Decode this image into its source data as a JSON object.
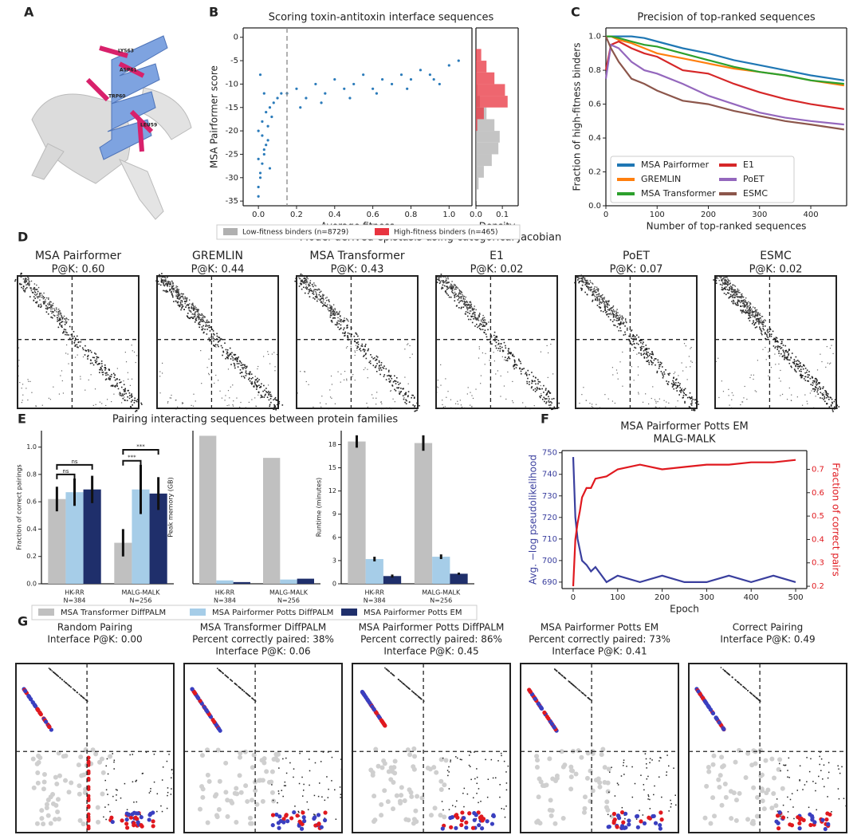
{
  "panel_labels": [
    "A",
    "B",
    "C",
    "D",
    "E",
    "F",
    "G"
  ],
  "panel_a": {
    "residue_labels": [
      "LYS63",
      "ASP61",
      "TRP60",
      "LEU59"
    ]
  },
  "panel_d": {
    "title": "Model-derived epistasis using categorical Jacobian",
    "maps": [
      {
        "model": "MSA Pairformer",
        "score": "P@K: 0.60"
      },
      {
        "model": "GREMLIN",
        "score": "P@K: 0.44"
      },
      {
        "model": "MSA Transformer",
        "score": "P@K: 0.43"
      },
      {
        "model": "E1",
        "score": "P@K: 0.02"
      },
      {
        "model": "PoET",
        "score": "P@K: 0.07"
      },
      {
        "model": "ESMC",
        "score": "P@K: 0.02"
      }
    ]
  },
  "panel_e": {
    "title": "Pairing interacting sequences between protein families"
  },
  "panel_g": {
    "maps": [
      {
        "lines": [
          "Random Pairing",
          "Interface P@K: 0.00"
        ]
      },
      {
        "lines": [
          "MSA Transformer DiffPALM",
          "Percent correctly paired: 38%",
          "Interface P@K: 0.06"
        ]
      },
      {
        "lines": [
          "MSA Pairformer Potts DiffPALM",
          "Percent correctly paired: 86%",
          "Interface P@K: 0.45"
        ]
      },
      {
        "lines": [
          "MSA Pairformer Potts EM",
          "Percent correctly paired: 73%",
          "Interface P@K: 0.41"
        ]
      },
      {
        "lines": [
          "Correct Pairing",
          "Interface P@K: 0.49"
        ]
      }
    ]
  },
  "chart_data": [
    {
      "type": "scatter",
      "title": "Scoring toxin-antitoxin interface sequences",
      "x_label": "Average fitness",
      "y_label": "MSA Pairformer score",
      "color": "#2b7bba",
      "threshold": 0.15,
      "x": [
        0.0,
        0.01,
        0.02,
        0.03,
        0.05,
        0.0,
        0.02,
        0.04,
        0.06,
        0.08,
        0.01,
        0.03,
        0.0,
        0.05,
        0.07,
        0.1,
        0.12,
        0.02,
        0.04,
        0.0,
        0.15,
        0.2,
        0.25,
        0.3,
        0.35,
        0.4,
        0.45,
        0.5,
        0.55,
        0.6,
        0.65,
        0.7,
        0.75,
        0.8,
        0.85,
        0.9,
        0.95,
        1.0,
        1.05,
        0.22,
        0.33,
        0.48,
        0.62,
        0.78,
        0.92,
        0.03,
        0.01,
        0.06
      ],
      "values": [
        -34,
        -30,
        -27,
        -25,
        -22,
        -20,
        -18,
        -16,
        -15,
        -14,
        -29,
        -24,
        -32,
        -19,
        -17,
        -13,
        -12,
        -21,
        -23,
        -26,
        -12,
        -11,
        -13,
        -10,
        -12,
        -9,
        -11,
        -10,
        -8,
        -11,
        -9,
        -10,
        -8,
        -9,
        -7,
        -8,
        -10,
        -6,
        -5,
        -15,
        -14,
        -13,
        -12,
        -11,
        -9,
        -12,
        -8,
        -28
      ],
      "xlim": [
        -0.08,
        1.12
      ],
      "xticks": [
        {
          "value": 0,
          "label": "0.0"
        },
        {
          "value": 0.2,
          "label": "0.2"
        },
        {
          "value": 0.4,
          "label": "0.4"
        },
        {
          "value": 0.6,
          "label": "0.6"
        },
        {
          "value": 0.8,
          "label": "0.8"
        },
        {
          "value": 1,
          "label": "1.0"
        }
      ],
      "ylim": [
        -36,
        2
      ],
      "yticks": [
        0,
        -5,
        -10,
        -15,
        -20,
        -25,
        -30,
        -35
      ]
    },
    {
      "type": "histogram",
      "orientation": "horizontal",
      "x_label": "Density",
      "legend": "below",
      "bins": [
        -35,
        -32.5,
        -30,
        -27.5,
        -25,
        -22.5,
        -20,
        -17.5,
        -15,
        -12.5,
        -10,
        -7.5,
        -5,
        -2.5
      ],
      "series": [
        {
          "name": "Low-fitness binders (n=8729)",
          "color": "#b0b0b0",
          "values": [
            0.003,
            0.01,
            0.03,
            0.06,
            0.085,
            0.09,
            0.07,
            0.04,
            0.015,
            0.005,
            0.002,
            0.001,
            0
          ]
        },
        {
          "name": "High-fitness binders (n=465)",
          "color": "#e8333f",
          "values": [
            0,
            0,
            0,
            0,
            0,
            0,
            0.005,
            0.03,
            0.12,
            0.11,
            0.07,
            0.04,
            0.02
          ]
        }
      ],
      "xlim": [
        0,
        0.16
      ],
      "xticks": [
        {
          "value": 0,
          "label": "0.0"
        },
        {
          "value": 0.1,
          "label": "0.1"
        }
      ],
      "ylim": [
        -36,
        2
      ]
    },
    {
      "type": "line",
      "title": "Precision of top-ranked sequences",
      "x_label": "Number of top-ranked sequences",
      "y_label": "Fraction of high-fitness binders",
      "legend": "lower left",
      "x": [
        0,
        10,
        25,
        50,
        75,
        100,
        150,
        200,
        250,
        300,
        350,
        400,
        465
      ],
      "series": [
        {
          "name": "MSA Pairformer",
          "color": "#1f77b4",
          "values": [
            1.0,
            1.0,
            1.0,
            1.0,
            0.99,
            0.97,
            0.93,
            0.9,
            0.86,
            0.83,
            0.8,
            0.77,
            0.74
          ]
        },
        {
          "name": "GREMLIN",
          "color": "#ff7f0e",
          "values": [
            1.0,
            1.0,
            0.98,
            0.96,
            0.93,
            0.9,
            0.87,
            0.84,
            0.81,
            0.79,
            0.77,
            0.74,
            0.71
          ]
        },
        {
          "name": "MSA Transformer",
          "color": "#2ca02c",
          "values": [
            1.0,
            1.0,
            0.99,
            0.97,
            0.95,
            0.94,
            0.9,
            0.86,
            0.82,
            0.79,
            0.77,
            0.74,
            0.72
          ]
        },
        {
          "name": "E1",
          "color": "#d62728",
          "values": [
            0.8,
            0.95,
            0.97,
            0.93,
            0.9,
            0.88,
            0.8,
            0.78,
            0.72,
            0.67,
            0.63,
            0.6,
            0.57
          ]
        },
        {
          "name": "PoET",
          "color": "#9467bd",
          "values": [
            0.75,
            0.95,
            0.93,
            0.85,
            0.8,
            0.78,
            0.72,
            0.65,
            0.6,
            0.55,
            0.52,
            0.5,
            0.48
          ]
        },
        {
          "name": "ESMC",
          "color": "#8c564b",
          "values": [
            1.0,
            0.93,
            0.85,
            0.75,
            0.72,
            0.68,
            0.62,
            0.6,
            0.56,
            0.53,
            0.5,
            0.48,
            0.45
          ]
        }
      ],
      "xlim": [
        0,
        470
      ],
      "xticks": [
        0,
        100,
        200,
        300,
        400
      ],
      "ylim": [
        0,
        1.05
      ],
      "yticks": [
        {
          "value": 0,
          "label": "0.0"
        },
        0.2,
        0.4,
        0.6,
        0.8,
        {
          "value": 1,
          "label": "1.0"
        }
      ]
    },
    {
      "type": "bar",
      "y_label": "Fraction of correct pairings",
      "legend": "below",
      "categories": [
        "HK-RR",
        "MALG-MALK"
      ],
      "category_notes": [
        "N=384",
        "N=256"
      ],
      "series": [
        {
          "name": "MSA Transformer DiffPALM",
          "color": "#c0c0c0",
          "values": [
            0.62,
            0.3
          ],
          "errors": [
            0.09,
            0.1
          ]
        },
        {
          "name": "MSA Pairformer Potts DiffPALM",
          "color": "#a6cde8",
          "values": [
            0.67,
            0.69
          ],
          "errors": [
            0.1,
            0.18
          ]
        },
        {
          "name": "MSA Pairformer Potts EM",
          "color": "#1f2f6b",
          "values": [
            0.69,
            0.66
          ],
          "errors": [
            0.1,
            0.12
          ]
        }
      ],
      "annotations": [
        "ns",
        "ns",
        "***",
        "***"
      ],
      "ylim": [
        0,
        1.12
      ],
      "yticks": [
        {
          "value": 0,
          "label": "0.0"
        },
        0.2,
        0.4,
        0.6,
        0.8,
        {
          "value": 1,
          "label": "1.0"
        }
      ]
    },
    {
      "type": "bar",
      "y_label": "Peak memory (GB)",
      "categories": [
        "HK-RR",
        "MALG-MALK"
      ],
      "category_notes": [
        "N=384",
        "N=256"
      ],
      "series": [
        {
          "color": "#c0c0c0",
          "values": [
            87,
            74
          ]
        },
        {
          "color": "#a6cde8",
          "values": [
            2,
            2.5
          ]
        },
        {
          "color": "#1f2f6b",
          "values": [
            1,
            3
          ]
        }
      ],
      "ylim": [
        0,
        90
      ]
    },
    {
      "type": "bar",
      "y_label": "Runtime (minutes)",
      "categories": [
        "HK-RR",
        "MALG-MALK"
      ],
      "category_notes": [
        "N=384",
        "N=256"
      ],
      "series": [
        {
          "color": "#c0c0c0",
          "values": [
            18.4,
            18.2
          ],
          "errors": [
            0.8,
            1.0
          ]
        },
        {
          "color": "#a6cde8",
          "values": [
            3.2,
            3.5
          ],
          "errors": [
            0.3,
            0.3
          ]
        },
        {
          "color": "#1f2f6b",
          "values": [
            1.0,
            1.3
          ],
          "errors": [
            0.2,
            0.15
          ]
        }
      ],
      "ylim": [
        0,
        19.8
      ],
      "yticks": [
        0,
        3,
        6,
        9,
        12,
        15,
        18
      ]
    },
    {
      "type": "line",
      "title": "MSA Pairformer Potts EM",
      "subtitle": "MALG-MALK",
      "x_label": "Epoch",
      "y_label": "Avg. −log pseudolikelihood",
      "y2_label": "Fraction of correct pairs",
      "x": [
        0,
        5,
        10,
        15,
        20,
        30,
        40,
        50,
        75,
        100,
        150,
        200,
        250,
        300,
        350,
        400,
        450,
        500
      ],
      "series": [
        {
          "color": "#3a3f9e",
          "values": [
            748,
            720,
            710,
            705,
            700,
            698,
            695,
            697,
            690,
            693,
            690,
            693,
            690,
            690,
            693,
            690,
            693,
            690
          ]
        },
        {
          "color": "#e0191f",
          "axis": "y2",
          "values": [
            0.2,
            0.4,
            0.47,
            0.52,
            0.58,
            0.62,
            0.62,
            0.66,
            0.67,
            0.7,
            0.72,
            0.7,
            0.71,
            0.72,
            0.72,
            0.73,
            0.73,
            0.74
          ]
        }
      ],
      "xlim": [
        -25,
        525
      ],
      "xticks": [
        0,
        100,
        200,
        300,
        400,
        500
      ],
      "ylim": [
        687,
        751
      ],
      "yticks": [
        690,
        700,
        710,
        720,
        730,
        740,
        750
      ],
      "y2lim": [
        0.19,
        0.78
      ],
      "y2ticks": [
        0.2,
        0.3,
        0.4,
        0.5,
        0.6,
        0.7
      ]
    }
  ]
}
